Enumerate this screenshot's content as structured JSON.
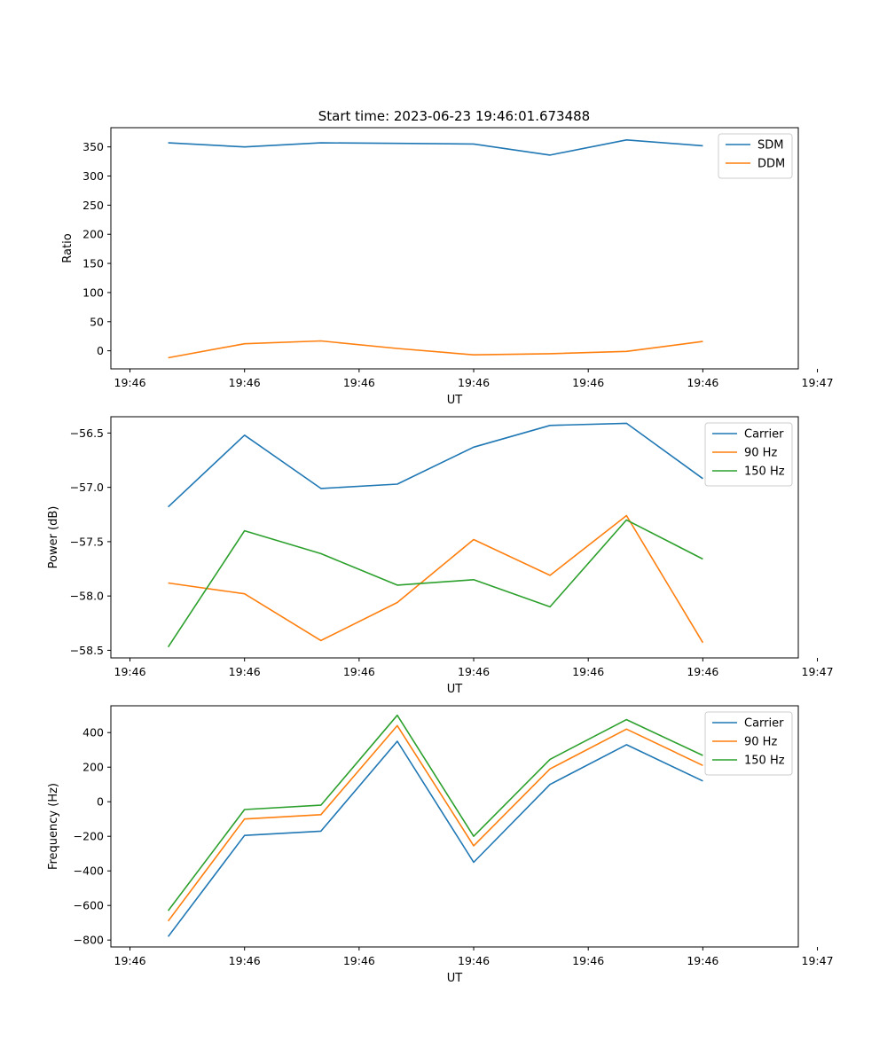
{
  "chart_data": [
    {
      "type": "line",
      "title": "Start time: 2023-06-23 19:46:01.673488",
      "xlabel": "UT",
      "ylabel": "Ratio",
      "x_ticks": [
        "19:46",
        "19:46",
        "19:46",
        "19:46",
        "19:46",
        "19:46",
        "19:47"
      ],
      "x": [
        1,
        2,
        3,
        4,
        5,
        6,
        7,
        8
      ],
      "xlim": [
        0.25,
        9.25
      ],
      "ylim": [
        -31,
        383
      ],
      "y_ticks": [
        0,
        50,
        100,
        150,
        200,
        250,
        300,
        350
      ],
      "legend_position": "top-right",
      "series": [
        {
          "name": "SDM",
          "color": "#1f77b4",
          "values": [
            357,
            350,
            357,
            356,
            355,
            336,
            362,
            352
          ]
        },
        {
          "name": "DDM",
          "color": "#ff7f0e",
          "values": [
            -12,
            12,
            17,
            4,
            -7,
            -5,
            -1,
            16
          ]
        }
      ]
    },
    {
      "type": "line",
      "title": "",
      "xlabel": "UT",
      "ylabel": "Power (dB)",
      "x_ticks": [
        "19:46",
        "19:46",
        "19:46",
        "19:46",
        "19:46",
        "19:46",
        "19:47"
      ],
      "x": [
        1,
        2,
        3,
        4,
        5,
        6,
        7,
        8
      ],
      "xlim": [
        0.25,
        9.25
      ],
      "ylim": [
        -58.57,
        -56.35
      ],
      "y_ticks": [
        -58.5,
        -58.0,
        -57.5,
        -57.0,
        -56.5
      ],
      "y_tick_labels": [
        "−58.5",
        "−58.0",
        "−57.5",
        "−57.0",
        "−56.5"
      ],
      "legend_position": "top-right",
      "series": [
        {
          "name": "Carrier",
          "color": "#1f77b4",
          "values": [
            -57.18,
            -56.52,
            -57.01,
            -56.97,
            -56.63,
            -56.43,
            -56.41,
            -56.92
          ]
        },
        {
          "name": "90 Hz",
          "color": "#ff7f0e",
          "values": [
            -57.88,
            -57.98,
            -58.41,
            -58.06,
            -57.48,
            -57.81,
            -57.26,
            -58.43
          ]
        },
        {
          "name": "150 Hz",
          "color": "#2ca02c",
          "values": [
            -58.47,
            -57.4,
            -57.61,
            -57.9,
            -57.85,
            -58.1,
            -57.3,
            -57.66
          ]
        }
      ]
    },
    {
      "type": "line",
      "title": "",
      "xlabel": "UT",
      "ylabel": "Frequency (Hz)",
      "x_ticks": [
        "19:46",
        "19:46",
        "19:46",
        "19:46",
        "19:46",
        "19:46",
        "19:47"
      ],
      "x": [
        1,
        2,
        3,
        4,
        5,
        6,
        7,
        8
      ],
      "xlim": [
        0.25,
        9.25
      ],
      "ylim": [
        -840,
        555
      ],
      "y_ticks": [
        -800,
        -600,
        -400,
        -200,
        0,
        200,
        400
      ],
      "y_tick_labels": [
        "−800",
        "−600",
        "−400",
        "−200",
        "0",
        "200",
        "400"
      ],
      "legend_position": "top-right",
      "series": [
        {
          "name": "Carrier",
          "color": "#1f77b4",
          "values": [
            -780,
            -195,
            -170,
            350,
            -350,
            100,
            330,
            120
          ]
        },
        {
          "name": "90 Hz",
          "color": "#ff7f0e",
          "values": [
            -690,
            -100,
            -75,
            440,
            -255,
            190,
            420,
            210
          ]
        },
        {
          "name": "150 Hz",
          "color": "#2ca02c",
          "values": [
            -630,
            -45,
            -20,
            500,
            -200,
            245,
            475,
            268
          ]
        }
      ]
    }
  ]
}
